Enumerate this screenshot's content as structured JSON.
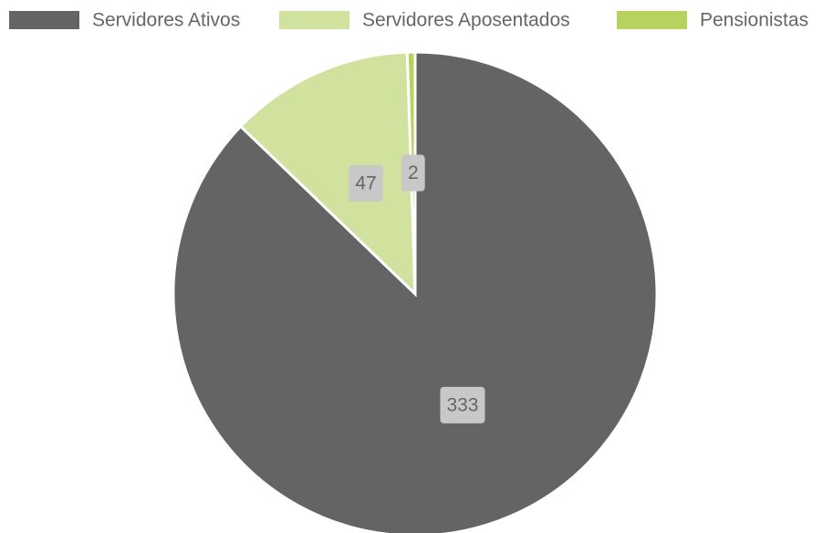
{
  "chart_data": {
    "type": "pie",
    "categories": [
      "Servidores Ativos",
      "Servidores Aposentados",
      "Pensionistas"
    ],
    "values": [
      333,
      47,
      2
    ],
    "colors": [
      "#646464",
      "#d0e29e",
      "#b5d35e"
    ],
    "legend": "top"
  }
}
